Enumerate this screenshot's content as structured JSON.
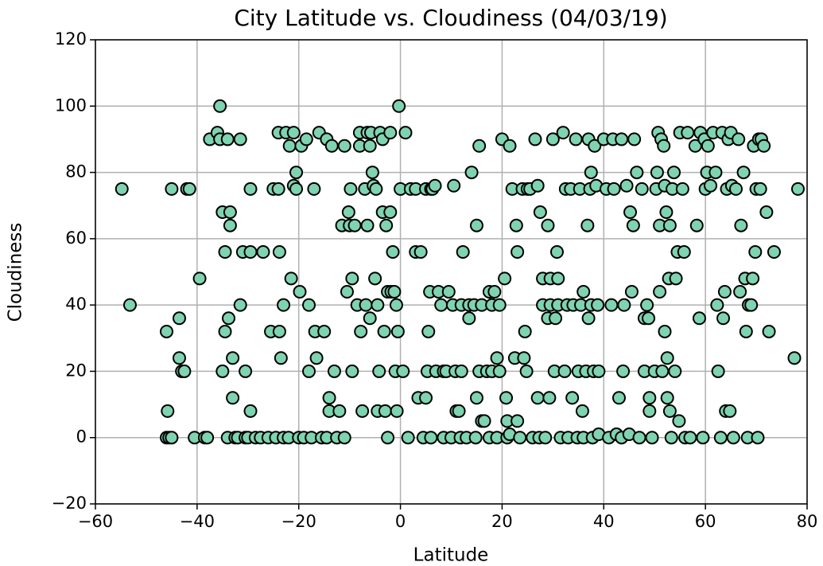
{
  "chart_data": {
    "type": "scatter",
    "title": "City Latitude vs. Cloudiness (04/03/19)",
    "x_label": "Latitude",
    "y_label": "Cloudiness",
    "color": "#7fd3b0",
    "edge_color": "#000000",
    "grid": true,
    "xlim": [
      -60,
      80
    ],
    "ylim": [
      -20,
      120
    ],
    "xticks": [
      {
        "value": -60,
        "label": "−60"
      },
      {
        "value": -40,
        "label": "−40"
      },
      {
        "value": -20,
        "label": "−20"
      },
      0,
      20,
      40,
      60,
      80
    ],
    "yticks": [
      {
        "value": -20,
        "label": "−20"
      },
      0,
      20,
      40,
      60,
      80,
      100,
      120
    ],
    "x": [
      -54.8,
      -53.2,
      -46,
      -45.8,
      -46,
      -45.5,
      -45,
      -45,
      -43.5,
      -43.5,
      -43,
      -42.5,
      -42,
      -41.5,
      -40.5,
      -39.5,
      -38.5,
      -38,
      -37.5,
      -36,
      -35.5,
      -35.5,
      -35,
      -35,
      -34.5,
      -34.5,
      -34,
      -34,
      -33.8,
      -33.5,
      -33.5,
      -33,
      -33,
      -32.5,
      -32,
      -31.5,
      -31.5,
      -31,
      -30.5,
      -30.5,
      -30,
      -29.5,
      -29.5,
      -29.5,
      -28.5,
      -27.5,
      -27,
      -26,
      -25.5,
      -25,
      -24.5,
      -24,
      -24,
      -23.8,
      -23.8,
      -23.5,
      -23,
      -23,
      -22.5,
      -22,
      -21.8,
      -21.5,
      -21,
      -21,
      -20.5,
      -20.5,
      -20,
      -19.8,
      -19.5,
      -19,
      -18.5,
      -18,
      -18,
      -17.5,
      -17,
      -16.8,
      -16.5,
      -16,
      -15.5,
      -15,
      -14.5,
      -14.5,
      -14,
      -14,
      -13.5,
      -13,
      -12.5,
      -12,
      -11.5,
      -11,
      -11,
      -10.5,
      -10.2,
      -10,
      -9.8,
      -9.5,
      -9.5,
      -9,
      -8.5,
      -8,
      -8,
      -7.8,
      -7.5,
      -7,
      -6.8,
      -6.5,
      -6.5,
      -6,
      -6,
      -5.8,
      -5.5,
      -5.3,
      -5,
      -4.8,
      -4.5,
      -4.5,
      -4.2,
      -4,
      -3.5,
      -3.5,
      -3.2,
      -3,
      -2.8,
      -2.5,
      -2.5,
      -2,
      -2,
      -1.8,
      -1.5,
      -1.2,
      -1,
      -0.8,
      -0.7,
      -0.5,
      -0.3,
      0,
      0.5,
      1,
      1.5,
      2,
      3,
      3,
      3.5,
      4,
      4.5,
      5,
      5,
      5.3,
      5.5,
      5.8,
      6,
      6,
      6.3,
      6.8,
      7,
      7.5,
      8,
      8.5,
      8.5,
      9,
      9.5,
      10,
      10.3,
      10.5,
      10.8,
      11,
      11.5,
      11.8,
      12,
      12,
      12.3,
      13,
      13.5,
      13.5,
      14,
      14.5,
      14.8,
      15,
      15,
      15.5,
      15.5,
      16,
      16,
      16.5,
      17,
      17.5,
      17.5,
      18,
      18,
      18.5,
      19,
      19,
      19.5,
      19.5,
      20,
      20.5,
      20.8,
      21,
      21,
      21.5,
      21.5,
      22,
      22.5,
      22.8,
      23,
      23,
      23.5,
      24,
      24.3,
      24.5,
      24.8,
      25,
      25.5,
      26,
      26.5,
      27,
      27,
      27.3,
      27.5,
      28,
      28,
      28.5,
      29,
      29,
      29.3,
      29.5,
      29.5,
      30,
      30.3,
      30.5,
      30.8,
      31,
      31,
      31.5,
      32,
      32.3,
      32.5,
      32.8,
      33,
      33.5,
      33.8,
      34,
      34.5,
      34.8,
      35,
      35.3,
      35.5,
      35.8,
      36,
      36,
      36.5,
      36.8,
      37,
      37,
      37.3,
      37.5,
      37.5,
      37.8,
      38,
      38.2,
      38.5,
      38.8,
      39,
      39,
      40,
      40.5,
      41,
      41.5,
      41.8,
      42,
      42.5,
      43,
      43.5,
      43.5,
      43.8,
      44,
      44.5,
      45,
      45.2,
      45.5,
      45.8,
      46,
      46.5,
      47,
      47.5,
      48,
      48,
      48.5,
      48.8,
      49,
      49,
      49.5,
      50,
      50.3,
      50.5,
      50.7,
      51,
      51,
      51.3,
      51.5,
      51.8,
      52,
      52,
      52.3,
      52.5,
      52.5,
      52.8,
      53,
      53,
      53.3,
      53.5,
      53.8,
      54,
      54.2,
      54.5,
      54.8,
      55,
      55.5,
      55.8,
      56,
      56.5,
      57,
      58,
      58.3,
      58.8,
      59,
      59.5,
      59.8,
      60,
      60.3,
      60.5,
      61,
      61.5,
      62,
      62.3,
      62.5,
      63,
      63.3,
      63.5,
      63.8,
      64,
      64.2,
      64.5,
      64.8,
      65,
      65.2,
      65.5,
      66,
      66.5,
      66.8,
      67,
      67.5,
      67.8,
      68,
      68.3,
      68.5,
      69,
      69.3,
      69.5,
      69.8,
      70,
      70.3,
      70.5,
      70.8,
      71,
      71.5,
      72,
      72.5,
      73.5,
      77.5,
      78.2
    ],
    "values": [
      75,
      40,
      32,
      8,
      0,
      0,
      0,
      75,
      36,
      24,
      20,
      20,
      75,
      75,
      0,
      48,
      0,
      0,
      90,
      92,
      100,
      90,
      68,
      20,
      32,
      56,
      90,
      0,
      36,
      68,
      64,
      24,
      12,
      0,
      0,
      90,
      40,
      56,
      20,
      0,
      0,
      8,
      56,
      75,
      0,
      0,
      56,
      0,
      32,
      75,
      0,
      92,
      75,
      56,
      32,
      24,
      40,
      0,
      92,
      0,
      88,
      48,
      92,
      76,
      75,
      80,
      0,
      44,
      88,
      0,
      90,
      40,
      20,
      0,
      75,
      32,
      24,
      92,
      0,
      32,
      90,
      0,
      12,
      8,
      88,
      20,
      0,
      8,
      64,
      88,
      0,
      44,
      68,
      64,
      75,
      48,
      20,
      64,
      40,
      92,
      88,
      32,
      8,
      75,
      40,
      92,
      64,
      88,
      36,
      92,
      80,
      76,
      48,
      75,
      40,
      8,
      20,
      92,
      90,
      68,
      32,
      8,
      64,
      44,
      0,
      92,
      68,
      44,
      56,
      44,
      20,
      40,
      8,
      32,
      100,
      75,
      20,
      92,
      0,
      75,
      75,
      56,
      12,
      56,
      0,
      12,
      75,
      20,
      32,
      44,
      0,
      75,
      75,
      76,
      20,
      44,
      40,
      20,
      0,
      20,
      44,
      0,
      40,
      76,
      20,
      8,
      8,
      0,
      40,
      20,
      56,
      0,
      40,
      36,
      80,
      40,
      0,
      12,
      64,
      20,
      88,
      5,
      40,
      5,
      20,
      0,
      44,
      20,
      40,
      44,
      24,
      0,
      20,
      40,
      90,
      48,
      12,
      0,
      5,
      88,
      1,
      75,
      24,
      64,
      56,
      5,
      0,
      75,
      24,
      32,
      20,
      75,
      75,
      0,
      90,
      12,
      76,
      0,
      68,
      48,
      40,
      0,
      36,
      64,
      12,
      48,
      40,
      90,
      20,
      36,
      56,
      40,
      48,
      0,
      92,
      20,
      75,
      40,
      0,
      75,
      12,
      40,
      90,
      0,
      20,
      75,
      40,
      8,
      44,
      0,
      20,
      64,
      90,
      36,
      75,
      80,
      40,
      0,
      20,
      88,
      76,
      40,
      1,
      20,
      90,
      75,
      0,
      40,
      90,
      75,
      1,
      12,
      90,
      0,
      20,
      40,
      76,
      1,
      68,
      44,
      64,
      90,
      80,
      0,
      75,
      36,
      20,
      40,
      36,
      12,
      8,
      0,
      20,
      75,
      80,
      92,
      44,
      64,
      90,
      20,
      88,
      32,
      76,
      68,
      24,
      12,
      48,
      8,
      64,
      0,
      75,
      80,
      20,
      48,
      56,
      5,
      92,
      75,
      56,
      0,
      92,
      0,
      88,
      64,
      36,
      92,
      0,
      90,
      75,
      80,
      88,
      76,
      92,
      80,
      40,
      20,
      0,
      92,
      36,
      44,
      8,
      75,
      90,
      8,
      92,
      76,
      0,
      75,
      90,
      44,
      64,
      80,
      48,
      32,
      0,
      40,
      40,
      48,
      88,
      56,
      75,
      0,
      90,
      75,
      90,
      88,
      68,
      32,
      56,
      24,
      75
    ]
  }
}
